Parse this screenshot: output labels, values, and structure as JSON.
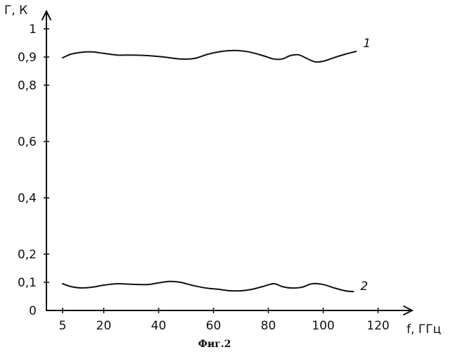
{
  "chart_data": {
    "type": "line",
    "ylabel": "Г, К",
    "xlabel": "f, ГГц",
    "caption": "Фиг.2",
    "xlim": [
      0,
      130
    ],
    "ylim": [
      0,
      1.05
    ],
    "grid": false,
    "x_ticks": [
      5,
      20,
      40,
      60,
      80,
      100,
      120
    ],
    "x_tick_labels": [
      "5",
      "20",
      "40",
      "60",
      "80",
      "100",
      "120"
    ],
    "y_ticks": [
      0,
      0.1,
      0.2,
      0.4,
      0.6,
      0.8,
      0.9,
      1
    ],
    "y_tick_labels": [
      "0",
      "0,1",
      "0,2",
      "0,4",
      "0,6",
      "0,8",
      "0,9",
      "1"
    ],
    "series": [
      {
        "name": "1",
        "x": [
          5,
          8,
          12,
          16,
          20,
          25,
          30,
          36,
          42,
          48,
          53,
          58,
          63,
          68,
          73,
          78,
          82,
          85,
          88,
          91,
          94,
          97,
          100,
          104,
          108,
          112
        ],
        "y": [
          0.897,
          0.91,
          0.917,
          0.918,
          0.913,
          0.907,
          0.907,
          0.905,
          0.9,
          0.893,
          0.895,
          0.91,
          0.92,
          0.923,
          0.918,
          0.905,
          0.893,
          0.893,
          0.905,
          0.908,
          0.895,
          0.883,
          0.885,
          0.898,
          0.91,
          0.92
        ]
      },
      {
        "name": "2",
        "x": [
          5,
          8,
          12,
          16,
          20,
          25,
          30,
          36,
          40,
          44,
          48,
          52,
          57,
          62,
          66,
          70,
          74,
          78,
          82,
          85,
          88,
          92,
          96,
          100,
          104,
          108,
          111
        ],
        "y": [
          0.095,
          0.085,
          0.08,
          0.083,
          0.09,
          0.095,
          0.093,
          0.092,
          0.098,
          0.103,
          0.1,
          0.09,
          0.08,
          0.075,
          0.07,
          0.07,
          0.075,
          0.085,
          0.095,
          0.085,
          0.08,
          0.082,
          0.095,
          0.092,
          0.08,
          0.07,
          0.067
        ]
      }
    ]
  }
}
